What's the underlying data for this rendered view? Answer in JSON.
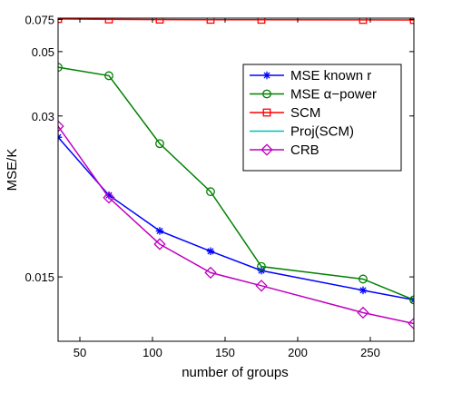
{
  "chart_data": {
    "type": "line",
    "title": "",
    "xlabel": "number of groups",
    "ylabel": "MSE/K",
    "xlim": [
      35,
      280
    ],
    "ylim": [
      0.0125,
      0.0765
    ],
    "y_scale": "reciprocal",
    "grid": false,
    "legend_position": "top-right",
    "x": [
      35,
      70,
      105,
      140,
      175,
      245,
      280
    ],
    "xticks": [
      50,
      100,
      150,
      200,
      250
    ],
    "xtick_labels": [
      "50",
      "100",
      "150",
      "200",
      "250"
    ],
    "yticks": [
      0.015,
      0.03,
      0.05,
      0.075
    ],
    "ytick_labels": [
      "0.015",
      "0.03",
      "0.05",
      "0.075"
    ],
    "series": [
      {
        "name": "MSE known r",
        "color": "#0000ff",
        "marker": "star",
        "values": [
          0.0265,
          0.0201,
          0.0175,
          0.0163,
          0.0153,
          0.0144,
          0.014
        ]
      },
      {
        "name": "MSE α−power",
        "color": "#008000",
        "marker": "circle",
        "values": [
          0.043,
          0.04,
          0.0256,
          0.0204,
          0.0155,
          0.0149,
          0.014
        ]
      },
      {
        "name": "SCM",
        "color": "#ff0000",
        "marker": "square",
        "values": [
          0.0755,
          0.075,
          0.0748,
          0.0746,
          0.0746,
          0.0745,
          0.0744
        ]
      },
      {
        "name": "Proj(SCM)",
        "color": "#00bfbf",
        "marker": "none",
        "values": [
          0.0123,
          0.01235,
          0.01228,
          0.0123,
          0.01225,
          0.01228,
          0.01225
        ]
      },
      {
        "name": "CRB",
        "color": "#bf00bf",
        "marker": "diamond",
        "values": [
          0.0282,
          0.0199,
          0.0167,
          0.0152,
          0.0146,
          0.0135,
          0.0131
        ]
      }
    ]
  }
}
